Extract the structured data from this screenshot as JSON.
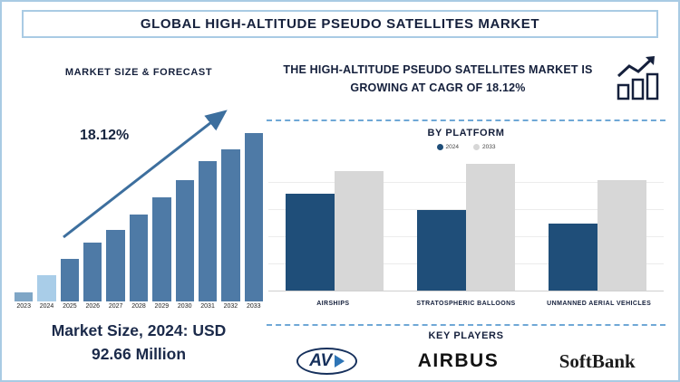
{
  "colors": {
    "accent_border": "#a9cbe4",
    "navy": "#15203c",
    "bar_2023": "#7fa6c6",
    "bar_2024": "#a9cde8",
    "bar_default": "#4e7aa6",
    "arrow": "#3d6f9e",
    "dashed_line": "#6fa8d6"
  },
  "header": {
    "title": "GLOBAL HIGH-ALTITUDE PSEUDO SATELLITES MARKET"
  },
  "left_panel": {
    "section_title": "MARKET SIZE & FORECAST",
    "cagr_annotation": "18.12%",
    "market_size_line1": "Market Size, 2024: USD",
    "market_size_line2": "92.66 Million"
  },
  "right_panel": {
    "headline": "THE HIGH-ALTITUDE PSEUDO SATELLITES MARKET IS GROWING AT CAGR OF 18.12%",
    "growth_icon": "bar-chart-with-rising-arrow",
    "by_platform_title": "BY PLATFORM",
    "key_players_title": "KEY PLAYERS",
    "key_players": [
      "AV",
      "AIRBUS",
      "SoftBank"
    ]
  },
  "chart_data": [
    {
      "type": "bar",
      "title": "MARKET SIZE & FORECAST",
      "categories": [
        "2023",
        "2024",
        "2025",
        "2026",
        "2027",
        "2028",
        "2029",
        "2030",
        "2031",
        "2032",
        "2033"
      ],
      "values": [
        10,
        28,
        45,
        62,
        76,
        92,
        110,
        128,
        148,
        161,
        178
      ],
      "unit": "relative bar height (no y-axis shown)",
      "labeled_value": "2024: USD 92.66 Million",
      "annotation": "18.12%",
      "trend": "rising diagonal arrow from 2023 bars to 2033 bars",
      "legend_position": "none",
      "grid": false
    },
    {
      "type": "bar",
      "title": "BY PLATFORM",
      "categories": [
        "AIRSHIPS",
        "STRATOSPHERIC BALLOONS",
        "UNMANNED AERIAL VEHICLES"
      ],
      "series": [
        {
          "name": "2024",
          "color": "#1f4e79",
          "values": [
            105,
            88,
            73
          ]
        },
        {
          "name": "2033",
          "color": "#d7d7d7",
          "values": [
            130,
            138,
            120
          ]
        }
      ],
      "unit": "relative bar height (no y-axis shown)",
      "legend_position": "top",
      "grid": true
    }
  ]
}
